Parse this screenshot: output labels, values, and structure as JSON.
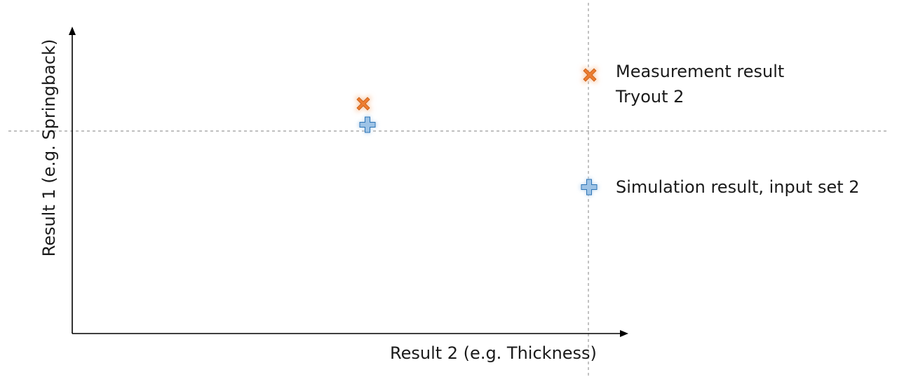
{
  "diagram": {
    "x_axis_label": "Result 2 (e.g. Thickness)",
    "y_axis_label": "Result 1 (e.g. Springback)",
    "legend": {
      "measurement": {
        "line1": "Measurement result",
        "line2": "Tryout 2"
      },
      "simulation": {
        "label": "Simulation result, input set 2"
      }
    },
    "colors": {
      "measurement_marker": "#ED7D31",
      "measurement_glow": "#F8C9A6",
      "simulation_marker": "#9DC3E6",
      "simulation_outline": "#2E75B6",
      "guide_line": "#9a9a9a",
      "axis": "#000000"
    },
    "icons": {
      "measurement": "x-cross-icon",
      "simulation": "plus-cross-icon"
    }
  }
}
